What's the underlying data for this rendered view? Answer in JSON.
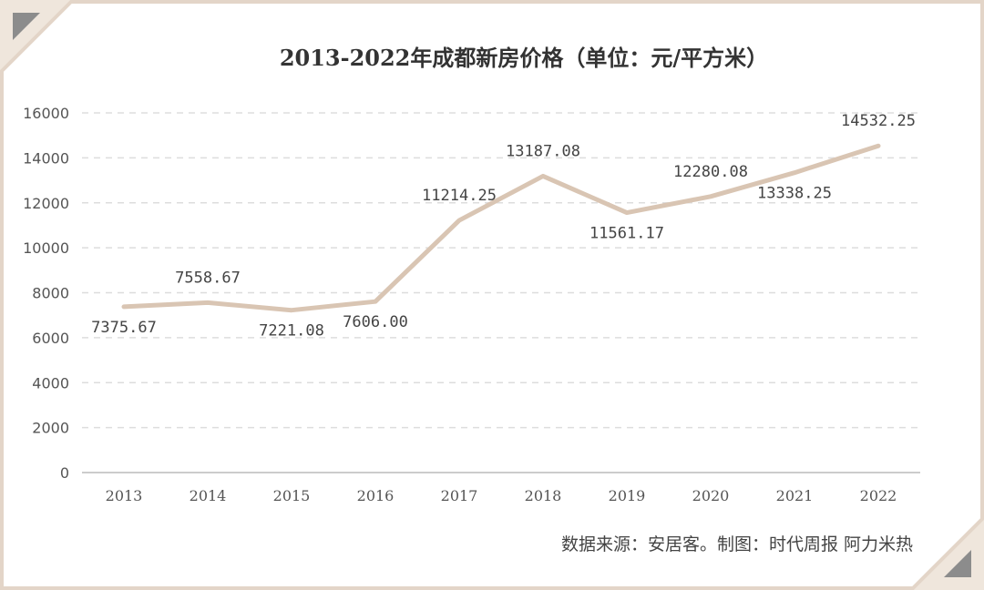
{
  "chart_data": {
    "type": "line",
    "title": "2013-2022年成都新房价格（单位：元/平方米）",
    "categories": [
      "2013",
      "2014",
      "2015",
      "2016",
      "2017",
      "2018",
      "2019",
      "2020",
      "2021",
      "2022"
    ],
    "series": [
      {
        "values": [
          7375.67,
          7558.67,
          7221.08,
          7606.0,
          11214.25,
          13187.08,
          11561.17,
          12280.08,
          13338.25,
          14532.25
        ],
        "labels": [
          "7375.67",
          "7558.67",
          "7221.08",
          "7606.00",
          "11214.25",
          "13187.08",
          "11561.17",
          "12280.08",
          "13338.25",
          "14532.25"
        ],
        "color": "#d9c5b3"
      }
    ],
    "ylim": [
      0,
      16000
    ],
    "yticks": [
      "0",
      "2000",
      "4000",
      "6000",
      "8000",
      "10000",
      "12000",
      "14000",
      "16000"
    ],
    "grid": true,
    "xlabel": "",
    "ylabel": ""
  },
  "source": "数据来源：安居客。制图：时代周报 阿力米热",
  "colors": {
    "frame": "#e3d5c8",
    "corner": "#8c8c8c",
    "grid": "#dddddd",
    "line": "#d9c5b3"
  }
}
